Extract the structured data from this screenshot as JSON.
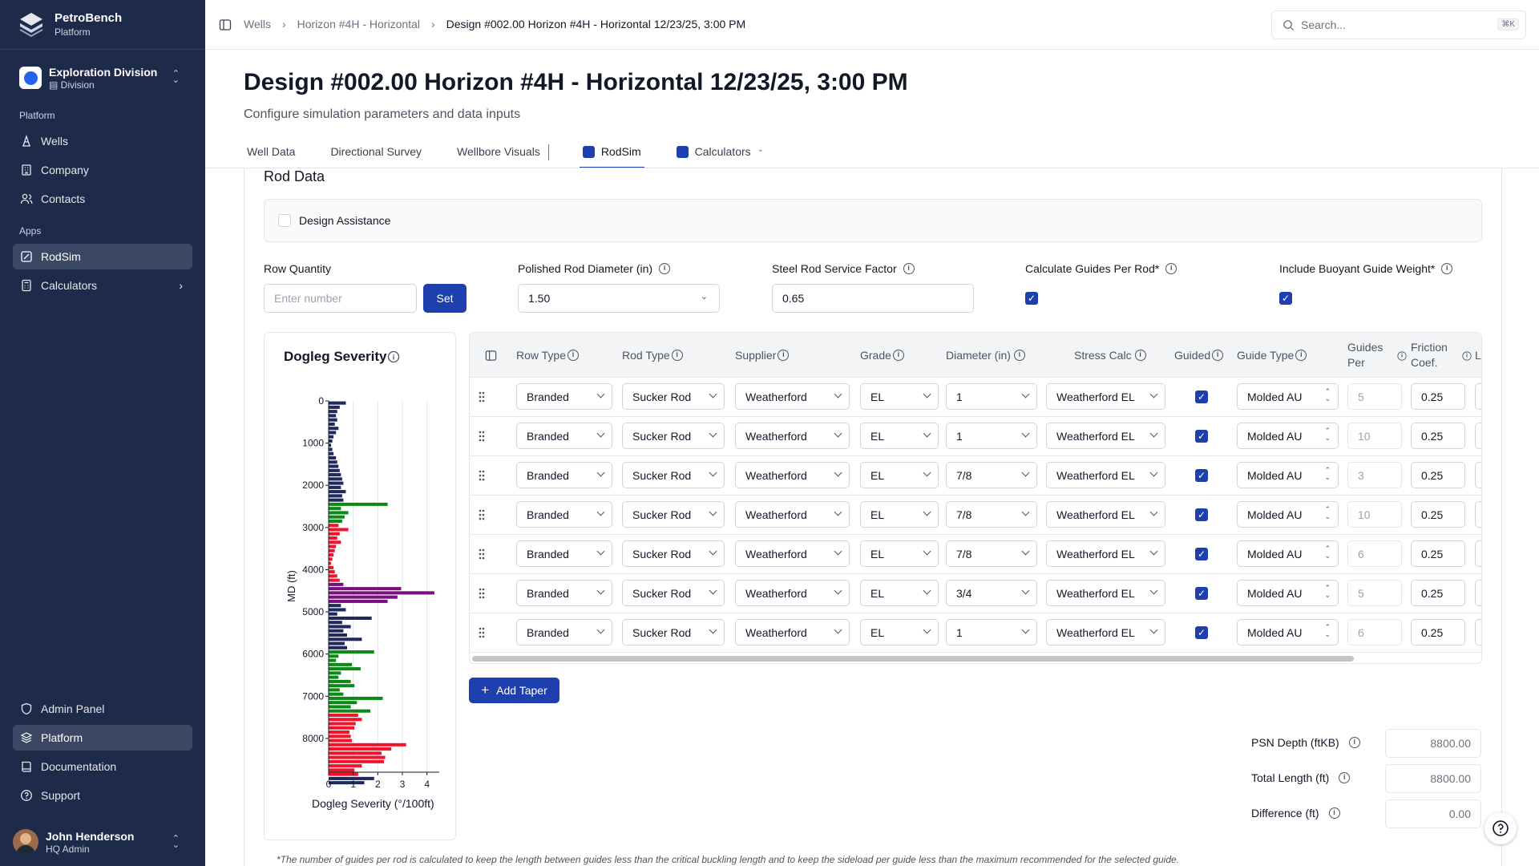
{
  "brand": {
    "name": "PetroBench",
    "sub": "Platform"
  },
  "division": {
    "name": "Exploration Division",
    "type": "Division"
  },
  "sidebar": {
    "platform_label": "Platform",
    "platform_items": [
      {
        "label": "Wells",
        "icon": "wells-icon"
      },
      {
        "label": "Company",
        "icon": "building-icon"
      },
      {
        "label": "Contacts",
        "icon": "contacts-icon"
      }
    ],
    "apps_label": "Apps",
    "apps_items": [
      {
        "label": "RodSim",
        "icon": "rodsim-icon",
        "active": true
      },
      {
        "label": "Calculators",
        "icon": "calculator-icon"
      }
    ],
    "bottom_items": [
      {
        "label": "Admin Panel",
        "icon": "shield-icon"
      },
      {
        "label": "Platform",
        "icon": "layers-icon",
        "active": true
      },
      {
        "label": "Documentation",
        "icon": "book-icon"
      },
      {
        "label": "Support",
        "icon": "help-circle-icon"
      }
    ]
  },
  "user": {
    "name": "John Henderson",
    "role": "HQ Admin"
  },
  "breadcrumb": [
    "Wells",
    "Horizon #4H - Horizontal",
    "Design #002.00 Horizon #4H - Horizontal 12/23/25, 3:00 PM"
  ],
  "search": {
    "placeholder": "Search...",
    "shortcut": "⌘K"
  },
  "page": {
    "title": "Design #002.00 Horizon #4H - Horizontal 12/23/25, 3:00 PM",
    "subtitle": "Configure simulation parameters and data inputs"
  },
  "tabs": [
    "Well Data",
    "Directional Survey",
    "Wellbore Visuals",
    "RodSim",
    "Calculators"
  ],
  "rod": {
    "heading": "Rod Data",
    "design_assistance": "Design Assistance",
    "row_quantity_label": "Row Quantity",
    "row_quantity_placeholder": "Enter number",
    "set_label": "Set",
    "polished_label": "Polished Rod Diameter (in)",
    "polished_value": "1.50",
    "service_label": "Steel Rod Service Factor",
    "service_value": "0.65",
    "calc_guides_label": "Calculate Guides Per Rod*",
    "calc_guides": true,
    "buoyant_label": "Include Buoyant Guide Weight*",
    "buoyant": true
  },
  "table": {
    "headers": [
      "Row Type",
      "Rod Type",
      "Supplier",
      "Grade",
      "Diameter (in)",
      "Stress Calc",
      "Guided",
      "Guide Type",
      "Guides Per",
      "Friction Coef.",
      "L"
    ],
    "rows": [
      {
        "row_type": "Branded",
        "rod_type": "Sucker Rod",
        "supplier": "Weatherford",
        "grade": "EL",
        "diameter": "1",
        "stress": "Weatherford EL",
        "guided": true,
        "guide_type": "Molded AU",
        "guides_per": "5",
        "friction": "0.25"
      },
      {
        "row_type": "Branded",
        "rod_type": "Sucker Rod",
        "supplier": "Weatherford",
        "grade": "EL",
        "diameter": "1",
        "stress": "Weatherford EL",
        "guided": true,
        "guide_type": "Molded AU",
        "guides_per": "10",
        "friction": "0.25"
      },
      {
        "row_type": "Branded",
        "rod_type": "Sucker Rod",
        "supplier": "Weatherford",
        "grade": "EL",
        "diameter": "7/8",
        "stress": "Weatherford EL",
        "guided": true,
        "guide_type": "Molded AU",
        "guides_per": "3",
        "friction": "0.25"
      },
      {
        "row_type": "Branded",
        "rod_type": "Sucker Rod",
        "supplier": "Weatherford",
        "grade": "EL",
        "diameter": "7/8",
        "stress": "Weatherford EL",
        "guided": true,
        "guide_type": "Molded AU",
        "guides_per": "10",
        "friction": "0.25"
      },
      {
        "row_type": "Branded",
        "rod_type": "Sucker Rod",
        "supplier": "Weatherford",
        "grade": "EL",
        "diameter": "7/8",
        "stress": "Weatherford EL",
        "guided": true,
        "guide_type": "Molded AU",
        "guides_per": "6",
        "friction": "0.25"
      },
      {
        "row_type": "Branded",
        "rod_type": "Sucker Rod",
        "supplier": "Weatherford",
        "grade": "EL",
        "diameter": "3/4",
        "stress": "Weatherford EL",
        "guided": true,
        "guide_type": "Molded AU",
        "guides_per": "5",
        "friction": "0.25"
      },
      {
        "row_type": "Branded",
        "rod_type": "Sucker Rod",
        "supplier": "Weatherford",
        "grade": "EL",
        "diameter": "1",
        "stress": "Weatherford EL",
        "guided": true,
        "guide_type": "Molded AU",
        "guides_per": "6",
        "friction": "0.25"
      }
    ],
    "add_taper": "Add Taper"
  },
  "summary": [
    {
      "label": "PSN Depth (ftKB)",
      "value": "8800.00"
    },
    {
      "label": "Total Length (ft)",
      "value": "8800.00"
    },
    {
      "label": "Difference (ft)",
      "value": "0.00"
    }
  ],
  "footnote": "*The number of guides per rod is calculated to keep the length between guides less than the critical buckling length and to keep the sideload per guide less than the maximum recommended for the selected guide.",
  "colors": {
    "sidebar": "#1e2a4a",
    "accent": "#1e40af",
    "navy": "#1f2a5a",
    "green": "#0a8a16",
    "red": "#f0132b",
    "purple": "#7a0e7e"
  },
  "chart_data": {
    "type": "bar",
    "orientation": "horizontal",
    "title": "Dogleg Severity",
    "xlabel": "Dogleg Severity (°/100ft)",
    "ylabel": "MD (ft)",
    "xlim": [
      0,
      4.5
    ],
    "ylim": [
      0,
      8800
    ],
    "xticks": [
      0,
      1,
      2,
      3,
      4
    ],
    "yticks": [
      0,
      1000,
      2000,
      3000,
      4000,
      5000,
      6000,
      7000,
      8000
    ],
    "bin_ft": 100,
    "values": [
      0.7,
      0.45,
      0.35,
      0.3,
      0.35,
      0.25,
      0.4,
      0.3,
      0.2,
      0.15,
      0.1,
      0.15,
      0.2,
      0.3,
      0.35,
      0.4,
      0.45,
      0.5,
      0.55,
      0.6,
      0.5,
      0.7,
      0.55,
      0.6,
      2.4,
      0.5,
      0.8,
      0.65,
      0.55,
      0.4,
      0.8,
      0.45,
      0.35,
      0.5,
      0.3,
      0.25,
      0.2,
      0.15,
      0.1,
      0.2,
      0.25,
      0.35,
      0.45,
      0.6,
      2.95,
      4.3,
      2.8,
      2.4,
      0.5,
      0.7,
      0.35,
      1.75,
      0.55,
      0.9,
      0.6,
      0.75,
      1.35,
      0.65,
      0.75,
      1.85,
      0.4,
      0.3,
      0.95,
      1.3,
      0.5,
      0.4,
      0.9,
      1.05,
      0.45,
      0.6,
      2.2,
      1.15,
      0.9,
      1.7,
      1.2,
      1.35,
      1.1,
      1.05,
      0.85,
      0.9,
      0.95,
      3.15,
      2.55,
      2.15,
      2.3,
      2.25,
      1.35,
      1.05,
      1.2,
      1.85,
      1.45
    ],
    "color_bands": [
      {
        "from": 0,
        "to": 2400,
        "color": "navy"
      },
      {
        "from": 2400,
        "to": 2900,
        "color": "green"
      },
      {
        "from": 2900,
        "to": 4300,
        "color": "red"
      },
      {
        "from": 4300,
        "to": 4800,
        "color": "purple"
      },
      {
        "from": 4800,
        "to": 5900,
        "color": "navy"
      },
      {
        "from": 5900,
        "to": 7400,
        "color": "green"
      },
      {
        "from": 7400,
        "to": 8900,
        "color": "red"
      }
    ]
  }
}
